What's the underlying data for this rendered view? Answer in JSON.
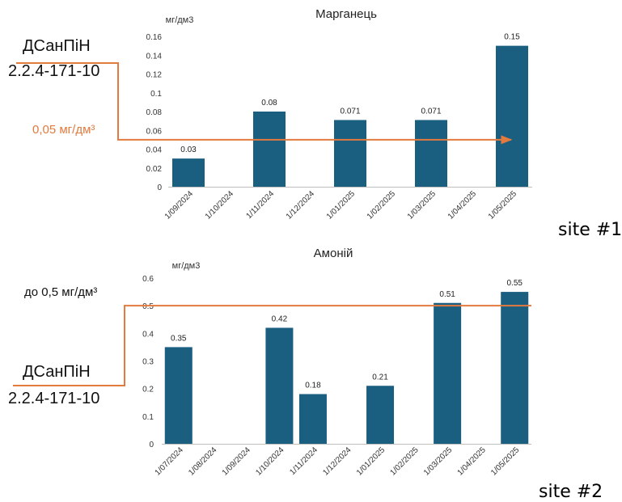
{
  "chart_data": [
    {
      "type": "bar",
      "title": "Марганець",
      "ylabel": "мг/дм3",
      "ylim": [
        0,
        0.16
      ],
      "yticks": [
        "0",
        "0.02",
        "0.04",
        "0.06",
        "0.08",
        "0.1",
        "0.12",
        "0.14",
        "0.16"
      ],
      "categories": [
        "1/09/2024",
        "1/10/2024",
        "1/11/2024",
        "1/12/2024",
        "1/01/2025",
        "1/02/2025",
        "1/03/2025",
        "1/04/2025",
        "1/05/2025"
      ],
      "values": [
        0.03,
        null,
        0.08,
        null,
        0.071,
        null,
        0.071,
        null,
        0.15
      ],
      "data_labels": [
        "0.03",
        "",
        "0.08",
        "",
        "0.071",
        "",
        "0.071",
        "",
        "0.15"
      ],
      "grid": false,
      "bar_color": "#1A5E80",
      "reference_line": {
        "value": 0.05,
        "color": "#E37A3E",
        "style": "arrow"
      }
    },
    {
      "type": "bar",
      "title": "Амоній",
      "ylabel": "мг/дм3",
      "ylim": [
        0,
        0.6
      ],
      "yticks": [
        "0",
        "0.1",
        "0.2",
        "0.3",
        "0.4",
        "0.5",
        "0.6"
      ],
      "categories": [
        "1/07/2024",
        "1/08/2024",
        "1/09/2024",
        "1/10/2024",
        "1/11/2024",
        "1/12/2024",
        "1/01/2025",
        "1/02/2025",
        "1/03/2025",
        "1/04/2025",
        "1/05/2025"
      ],
      "values": [
        0.35,
        null,
        null,
        0.42,
        0.18,
        null,
        0.21,
        null,
        0.51,
        null,
        0.55
      ],
      "data_labels": [
        "0.35",
        "",
        "",
        "0.42",
        "0.18",
        "",
        "0.21",
        "",
        "0.51",
        "",
        "0.55"
      ],
      "grid": false,
      "bar_color": "#1A5E80",
      "reference_line": {
        "value": 0.5,
        "color": "#E37A3E",
        "style": "line"
      }
    }
  ],
  "annotations": {
    "top": {
      "norm_line1": "ДСанПіН",
      "norm_line2": "2.2.4-171-10",
      "limit": "0,05 мг/дм³",
      "site": "site #1"
    },
    "bottom": {
      "norm_line1": "ДСанПіН",
      "norm_line2": "2.2.4-171-10",
      "limit": "до 0,5 мг/дм³",
      "site": "site #2"
    }
  },
  "colors": {
    "bar": "#1A5E80",
    "reference": "#E37A3E",
    "axis": "#BFBFBF",
    "text": "#222222"
  }
}
